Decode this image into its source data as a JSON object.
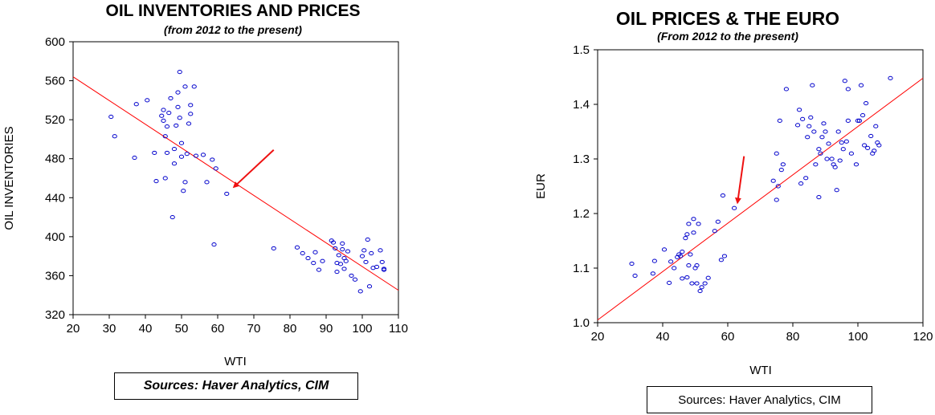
{
  "chart_data": [
    {
      "id": "left",
      "type": "scatter",
      "title": "OIL INVENTORIES AND PRICES",
      "subtitle": "(from 2012 to the present)",
      "xlabel": "WTI",
      "ylabel": "OIL INVENTORIES",
      "xlim": [
        20,
        110
      ],
      "ylim": [
        320,
        600
      ],
      "xticks": [
        "20",
        "30",
        "40",
        "50",
        "60",
        "70",
        "80",
        "90",
        "100",
        "110"
      ],
      "yticks": [
        "320",
        "360",
        "400",
        "440",
        "480",
        "520",
        "560",
        "600"
      ],
      "grid": false,
      "marker_color": "#0000cc",
      "fit_color": "#ff0000",
      "arrow_color": "#ee1111",
      "fit_line": {
        "x": [
          20,
          110
        ],
        "y": [
          564,
          345
        ]
      },
      "arrow": {
        "from": [
          75.5,
          489
        ],
        "to": [
          64.5,
          451
        ]
      },
      "points": [
        [
          30.5,
          523
        ],
        [
          31.5,
          503
        ],
        [
          37,
          481
        ],
        [
          37.5,
          536
        ],
        [
          40.5,
          540
        ],
        [
          42.5,
          486
        ],
        [
          43,
          457
        ],
        [
          44.5,
          524
        ],
        [
          45,
          519
        ],
        [
          45,
          530
        ],
        [
          45.5,
          503
        ],
        [
          45.5,
          460
        ],
        [
          46,
          513
        ],
        [
          46,
          486
        ],
        [
          46.5,
          527
        ],
        [
          47,
          542
        ],
        [
          47.5,
          420
        ],
        [
          48,
          475
        ],
        [
          48,
          490
        ],
        [
          48.5,
          514
        ],
        [
          49,
          548
        ],
        [
          49,
          533
        ],
        [
          49.5,
          569
        ],
        [
          49.5,
          522
        ],
        [
          50,
          496
        ],
        [
          50,
          482
        ],
        [
          50.5,
          447
        ],
        [
          51,
          456
        ],
        [
          51,
          554
        ],
        [
          51.5,
          485
        ],
        [
          52,
          516
        ],
        [
          52.5,
          535
        ],
        [
          52.5,
          526
        ],
        [
          53.5,
          554
        ],
        [
          54,
          483
        ],
        [
          56,
          484
        ],
        [
          57,
          456
        ],
        [
          58.5,
          479
        ],
        [
          59,
          392
        ],
        [
          59.5,
          470
        ],
        [
          62.5,
          444
        ],
        [
          75.5,
          388
        ],
        [
          82,
          389
        ],
        [
          83.5,
          383
        ],
        [
          85,
          378
        ],
        [
          86.5,
          373
        ],
        [
          87,
          384
        ],
        [
          88,
          366
        ],
        [
          89,
          375
        ],
        [
          91.5,
          396
        ],
        [
          92,
          394
        ],
        [
          92.5,
          388
        ],
        [
          93,
          373
        ],
        [
          93,
          364
        ],
        [
          93.5,
          381
        ],
        [
          94,
          372
        ],
        [
          94.5,
          393
        ],
        [
          94.5,
          387
        ],
        [
          95,
          367
        ],
        [
          95,
          378
        ],
        [
          95.5,
          375
        ],
        [
          96,
          385
        ],
        [
          97,
          360
        ],
        [
          98,
          356
        ],
        [
          99.5,
          344
        ],
        [
          100,
          380
        ],
        [
          100.5,
          386
        ],
        [
          101,
          374
        ],
        [
          101.5,
          397
        ],
        [
          102,
          349
        ],
        [
          102.5,
          383
        ],
        [
          103,
          368
        ],
        [
          104,
          369
        ],
        [
          105,
          386
        ],
        [
          105.5,
          374
        ],
        [
          106,
          366
        ],
        [
          106,
          367
        ]
      ]
    },
    {
      "id": "right",
      "type": "scatter",
      "title": "OIL PRICES & THE EURO",
      "subtitle": "(From 2012 to the present)",
      "xlabel": "WTI",
      "ylabel": "EUR",
      "xlim": [
        20,
        120
      ],
      "ylim": [
        1.0,
        1.5
      ],
      "xticks": [
        "20",
        "40",
        "60",
        "80",
        "100",
        "120"
      ],
      "yticks": [
        "1.0",
        "1.1",
        "1.2",
        "1.3",
        "1.4",
        "1.5"
      ],
      "grid": false,
      "marker_color": "#0000cc",
      "fit_color": "#ff0000",
      "arrow_color": "#ee1111",
      "fit_line": {
        "x": [
          20,
          120
        ],
        "y": [
          1.005,
          1.448
        ]
      },
      "arrow": {
        "from": [
          65,
          1.305
        ],
        "to": [
          63,
          1.22
        ]
      },
      "points": [
        [
          30.5,
          1.108
        ],
        [
          31.5,
          1.086
        ],
        [
          37,
          1.09
        ],
        [
          37.5,
          1.113
        ],
        [
          40.5,
          1.134
        ],
        [
          42,
          1.073
        ],
        [
          42.5,
          1.112
        ],
        [
          43.5,
          1.1
        ],
        [
          44.5,
          1.12
        ],
        [
          45,
          1.125
        ],
        [
          45.5,
          1.122
        ],
        [
          46,
          1.081
        ],
        [
          46,
          1.13
        ],
        [
          47,
          1.155
        ],
        [
          47.5,
          1.162
        ],
        [
          47.5,
          1.083
        ],
        [
          48,
          1.105
        ],
        [
          48,
          1.181
        ],
        [
          48.5,
          1.125
        ],
        [
          49,
          1.072
        ],
        [
          49.5,
          1.165
        ],
        [
          49.5,
          1.19
        ],
        [
          50,
          1.1
        ],
        [
          50.5,
          1.105
        ],
        [
          50.5,
          1.072
        ],
        [
          51,
          1.181
        ],
        [
          51.5,
          1.058
        ],
        [
          52,
          1.065
        ],
        [
          53,
          1.072
        ],
        [
          54,
          1.082
        ],
        [
          56,
          1.168
        ],
        [
          57,
          1.185
        ],
        [
          58,
          1.115
        ],
        [
          58.5,
          1.233
        ],
        [
          59,
          1.122
        ],
        [
          62,
          1.21
        ],
        [
          74,
          1.26
        ],
        [
          75,
          1.31
        ],
        [
          75,
          1.225
        ],
        [
          75.5,
          1.25
        ],
        [
          76,
          1.37
        ],
        [
          76.5,
          1.28
        ],
        [
          77,
          1.29
        ],
        [
          78,
          1.428
        ],
        [
          81.5,
          1.362
        ],
        [
          82,
          1.39
        ],
        [
          82.5,
          1.255
        ],
        [
          83,
          1.373
        ],
        [
          84,
          1.265
        ],
        [
          84.5,
          1.34
        ],
        [
          85,
          1.36
        ],
        [
          85.5,
          1.376
        ],
        [
          86,
          1.435
        ],
        [
          86.5,
          1.35
        ],
        [
          87,
          1.29
        ],
        [
          88,
          1.23
        ],
        [
          88,
          1.318
        ],
        [
          88.5,
          1.31
        ],
        [
          89,
          1.34
        ],
        [
          89.5,
          1.365
        ],
        [
          90,
          1.35
        ],
        [
          90.5,
          1.3
        ],
        [
          91,
          1.328
        ],
        [
          92,
          1.3
        ],
        [
          92.5,
          1.29
        ],
        [
          93,
          1.285
        ],
        [
          93.5,
          1.243
        ],
        [
          94,
          1.35
        ],
        [
          94.5,
          1.297
        ],
        [
          95,
          1.33
        ],
        [
          95.5,
          1.318
        ],
        [
          96,
          1.443
        ],
        [
          96.5,
          1.332
        ],
        [
          97,
          1.428
        ],
        [
          97,
          1.37
        ],
        [
          98,
          1.31
        ],
        [
          99.5,
          1.29
        ],
        [
          100,
          1.37
        ],
        [
          100.5,
          1.37
        ],
        [
          101,
          1.435
        ],
        [
          101.5,
          1.38
        ],
        [
          102,
          1.325
        ],
        [
          102.5,
          1.402
        ],
        [
          103,
          1.32
        ],
        [
          104,
          1.342
        ],
        [
          104.5,
          1.31
        ],
        [
          105,
          1.315
        ],
        [
          105.5,
          1.36
        ],
        [
          106,
          1.33
        ],
        [
          106.5,
          1.325
        ],
        [
          110,
          1.448
        ]
      ]
    }
  ],
  "sources": {
    "left": "Sources:  Haver Analytics, CIM",
    "right": "Sources:  Haver Analytics, CIM"
  }
}
